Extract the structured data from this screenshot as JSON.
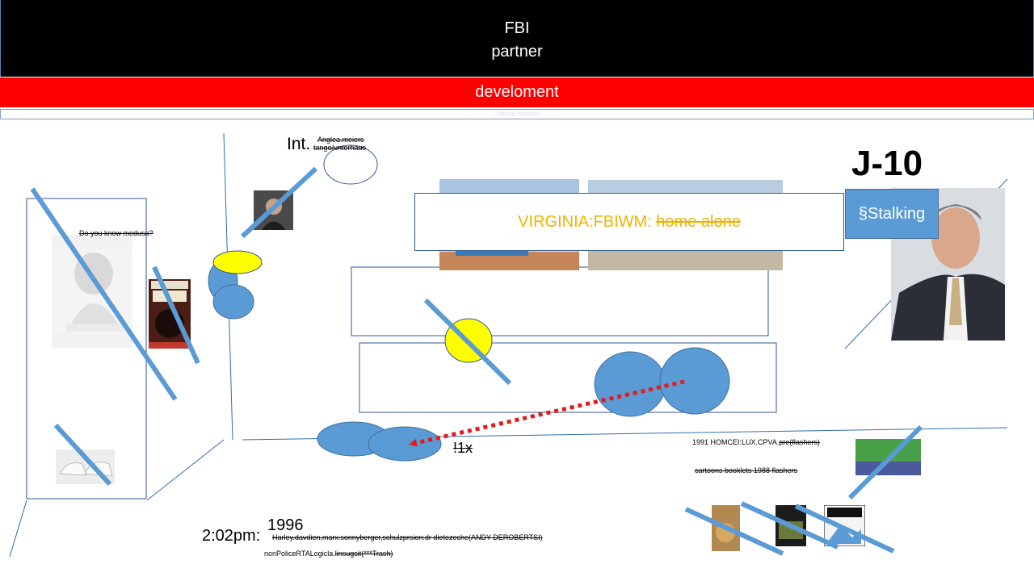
{
  "header": {
    "line1": "FBI",
    "line2": "partner",
    "red_bar": "develoment",
    "strip_text": "Stalking Phinitiala"
  },
  "labels": {
    "int_prefix": "Int.",
    "int_sup1": "Anglea.meiers",
    "int_sup2": "tango/unterhaus",
    "medusa_q": "Do you know medusa?",
    "j10": "J-10",
    "stalking": "§Stalking",
    "virginia_prefix": "VIRGINIA:FBIWM: ",
    "virginia_struck": "home alone",
    "count": "!1x",
    "homcei_prefix": "1991 HOMCEI:LUX.CPVA.",
    "homcei_struck": "pre(flashers)",
    "cartoons": "cartoons booklets 1988 flashers",
    "time": "2:02pm:",
    "year": "1996",
    "harley": "Harley.davdien.marx:sonnyberger,schulzprsion:dr dietezeche(ANDY DEROBERTSI)",
    "police_prefix": "nonPoliceRTALogicla.",
    "police_struck": "linsugsit(***Trash)"
  },
  "colors": {
    "blue": "#5b9bd5",
    "yellow": "#ffff00",
    "red": "#ff0000",
    "dotted_arrow": "#e41a1c",
    "virginia_text": "#f0b400"
  }
}
